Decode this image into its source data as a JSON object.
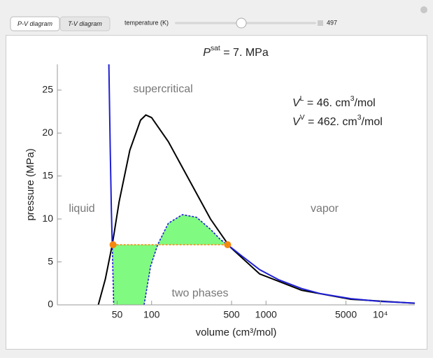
{
  "ui": {
    "tabs": [
      "P-V diagram",
      "T-V diagram"
    ],
    "slider_label": "temperature (K)",
    "slider_value": 497
  },
  "chart_data": {
    "type": "line",
    "title": {
      "symbol": "P",
      "sup": "sat",
      "text": " = 7. MPa"
    },
    "x_label": "volume (cm³/mol)",
    "y_label": "pressure (MPa)",
    "x_scale": "log",
    "xlim": [
      15,
      20000
    ],
    "ylim": [
      0,
      28
    ],
    "xticks": [
      50,
      100,
      500,
      1000,
      5000,
      {
        "value": 10000,
        "label": "10⁴"
      }
    ],
    "yticks": [
      0,
      5,
      10,
      15,
      20,
      25
    ],
    "series": [
      {
        "color": "#000000",
        "dash": false,
        "x": [
          34.2,
          39.4,
          45.3,
          52,
          64.5,
          80,
          89,
          100,
          140,
          214,
          327,
          480,
          880,
          2050,
          5500,
          20000
        ],
        "values": [
          0,
          3,
          7,
          12,
          18,
          21.5,
          22.1,
          21.8,
          19,
          14.5,
          10,
          6.8,
          3.6,
          1.7,
          0.65,
          0.18
        ]
      },
      {
        "color": "#1f1fd6",
        "dash": false,
        "x": [
          42.3,
          43.5,
          44.5,
          45.3
        ],
        "values": [
          28,
          18,
          11,
          7
        ]
      },
      {
        "color": "#1f1fd6",
        "dash": true,
        "x": [
          45.3,
          46.6,
          null,
          86,
          98,
          113,
          140,
          186,
          247,
          327,
          400,
          462
        ],
        "values": [
          7,
          0,
          null,
          0,
          4.5,
          7,
          9.5,
          10.5,
          10.2,
          8.8,
          7.6,
          7
        ]
      },
      {
        "color": "#1f1fd6",
        "dash": false,
        "x": [
          462,
          600,
          880,
          1300,
          2050,
          3000,
          5500,
          10000,
          20000
        ],
        "values": [
          7,
          5.8,
          4.1,
          2.9,
          1.9,
          1.3,
          0.72,
          0.4,
          0.2
        ]
      }
    ],
    "points": {
      "color": "#f5880f",
      "x": [
        46,
        462
      ],
      "values": [
        7,
        7
      ]
    },
    "fill_color": "#80fa80",
    "annotations": [
      {
        "symbol": "V",
        "sup": "L",
        "text": " = 46. cm",
        "unit_sup": "3",
        "unit": "/mol"
      },
      {
        "symbol": "V",
        "sup": "V",
        "text": " = 462. cm",
        "unit_sup": "3",
        "unit": "/mol"
      }
    ],
    "regions": [
      "supercritical",
      "liquid",
      "vapor",
      "two phases"
    ]
  }
}
